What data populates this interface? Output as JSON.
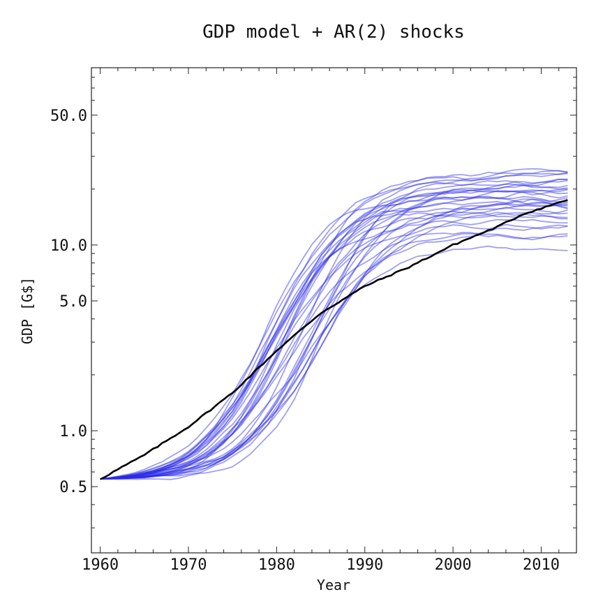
{
  "chart_data": {
    "type": "line",
    "title": "GDP model + AR(2) shocks",
    "xlabel": "Year",
    "ylabel": "GDP [G$]",
    "xlim": [
      1959,
      2014
    ],
    "ylim": [
      0.22,
      90
    ],
    "yscale": "log",
    "grid": false,
    "legend": "none",
    "x_ticks": [
      1960,
      1970,
      1980,
      1990,
      2000,
      2010
    ],
    "x_tick_labels": [
      "1960",
      "1970",
      "1980",
      "1990",
      "2000",
      "2010"
    ],
    "y_ticks": [
      0.5,
      1.0,
      5.0,
      10.0,
      50.0
    ],
    "y_tick_labels": [
      "0.5",
      "1.0",
      "5.0",
      "10.0",
      "50.0"
    ],
    "colors": {
      "simulations": "#2a2ae6",
      "model": "#000000"
    },
    "model_series": {
      "x": [
        1960,
        1965,
        1970,
        1975,
        1980,
        1985,
        1990,
        1995,
        2000,
        2005,
        2008,
        2013
      ],
      "values": [
        0.55,
        0.74,
        1.05,
        1.6,
        2.7,
        4.3,
        6.0,
        7.6,
        10.0,
        12.5,
        14.7,
        17.5
      ]
    },
    "simulations": {
      "count": 30,
      "x_start": 1960,
      "x_end": 2013,
      "start_value": 0.55,
      "end_values": [
        9.5,
        11.0,
        11.8,
        12.5,
        13.0,
        13.5,
        14.0,
        14.5,
        15.0,
        15.5,
        16.0,
        16.5,
        17.0,
        17.5,
        18.0,
        18.5,
        19.0,
        19.5,
        20.0,
        20.5,
        21.0,
        21.5,
        22.0,
        22.5,
        23.0,
        23.5,
        24.0,
        25.0,
        18.8,
        15.8
      ]
    }
  }
}
